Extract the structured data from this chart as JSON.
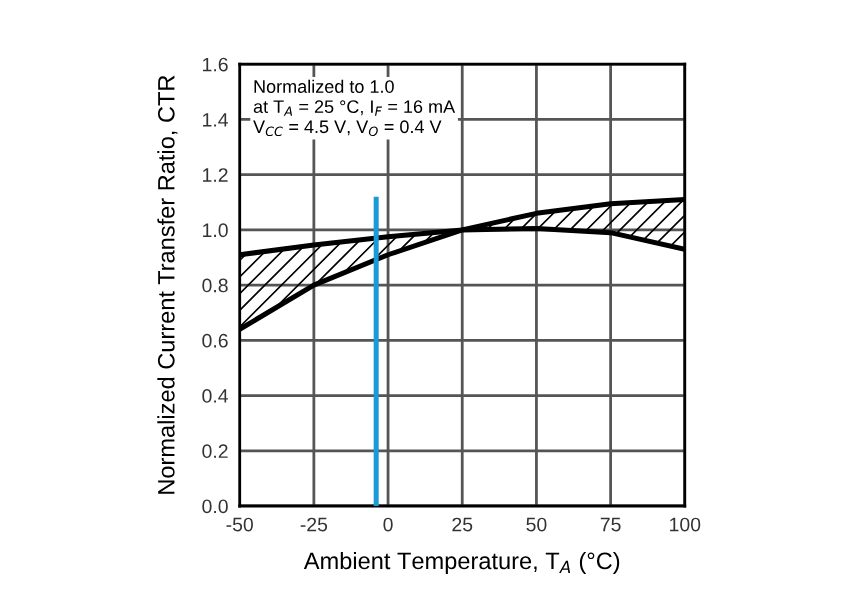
{
  "chart_data": {
    "type": "line",
    "xlabel": "Ambient Temperature, T$_{A}$ (°C)",
    "ylabel": "Normalized Current Transfer Ratio, CTR",
    "x": [
      -50,
      -25,
      0,
      25,
      50,
      75,
      100
    ],
    "series": [
      {
        "color": "#000000",
        "values": [
          0.91,
          0.945,
          0.975,
          1.0,
          1.06,
          1.095,
          1.11
        ]
      },
      {
        "color": "#000000",
        "values": [
          0.64,
          0.8,
          0.91,
          1.0,
          1.005,
          0.99,
          0.93
        ]
      },
      {
        "color": "#1a9ad6",
        "x": [
          -4,
          -4
        ],
        "values": [
          0.0,
          1.12
        ]
      }
    ],
    "xlim": [
      -50,
      100
    ],
    "xticks": [
      -50,
      -25,
      0,
      25,
      50,
      75,
      100
    ],
    "ylim": [
      0,
      1.6
    ],
    "yticks": [
      {
        "value": 0,
        "label": "0.0"
      },
      {
        "value": 0.2,
        "label": "0.2"
      },
      {
        "value": 0.4,
        "label": "0.4"
      },
      {
        "value": 0.6,
        "label": "0.6"
      },
      {
        "value": 0.8,
        "label": "0.8"
      },
      {
        "value": 1.0,
        "label": "1.0"
      },
      {
        "value": 1.2,
        "label": "1.2"
      },
      {
        "value": 1.4,
        "label": "1.4"
      },
      {
        "value": 1.6,
        "label": "1.6"
      }
    ],
    "grid": true,
    "annotations": [
      "Normalized to 1.0\nat T$_{A}$ = 25 °C, I$_{F}$ = 16 mA\nV$_{CC}$ = 4.5 V, V$_{O}$ = 0.4 V"
    ]
  }
}
